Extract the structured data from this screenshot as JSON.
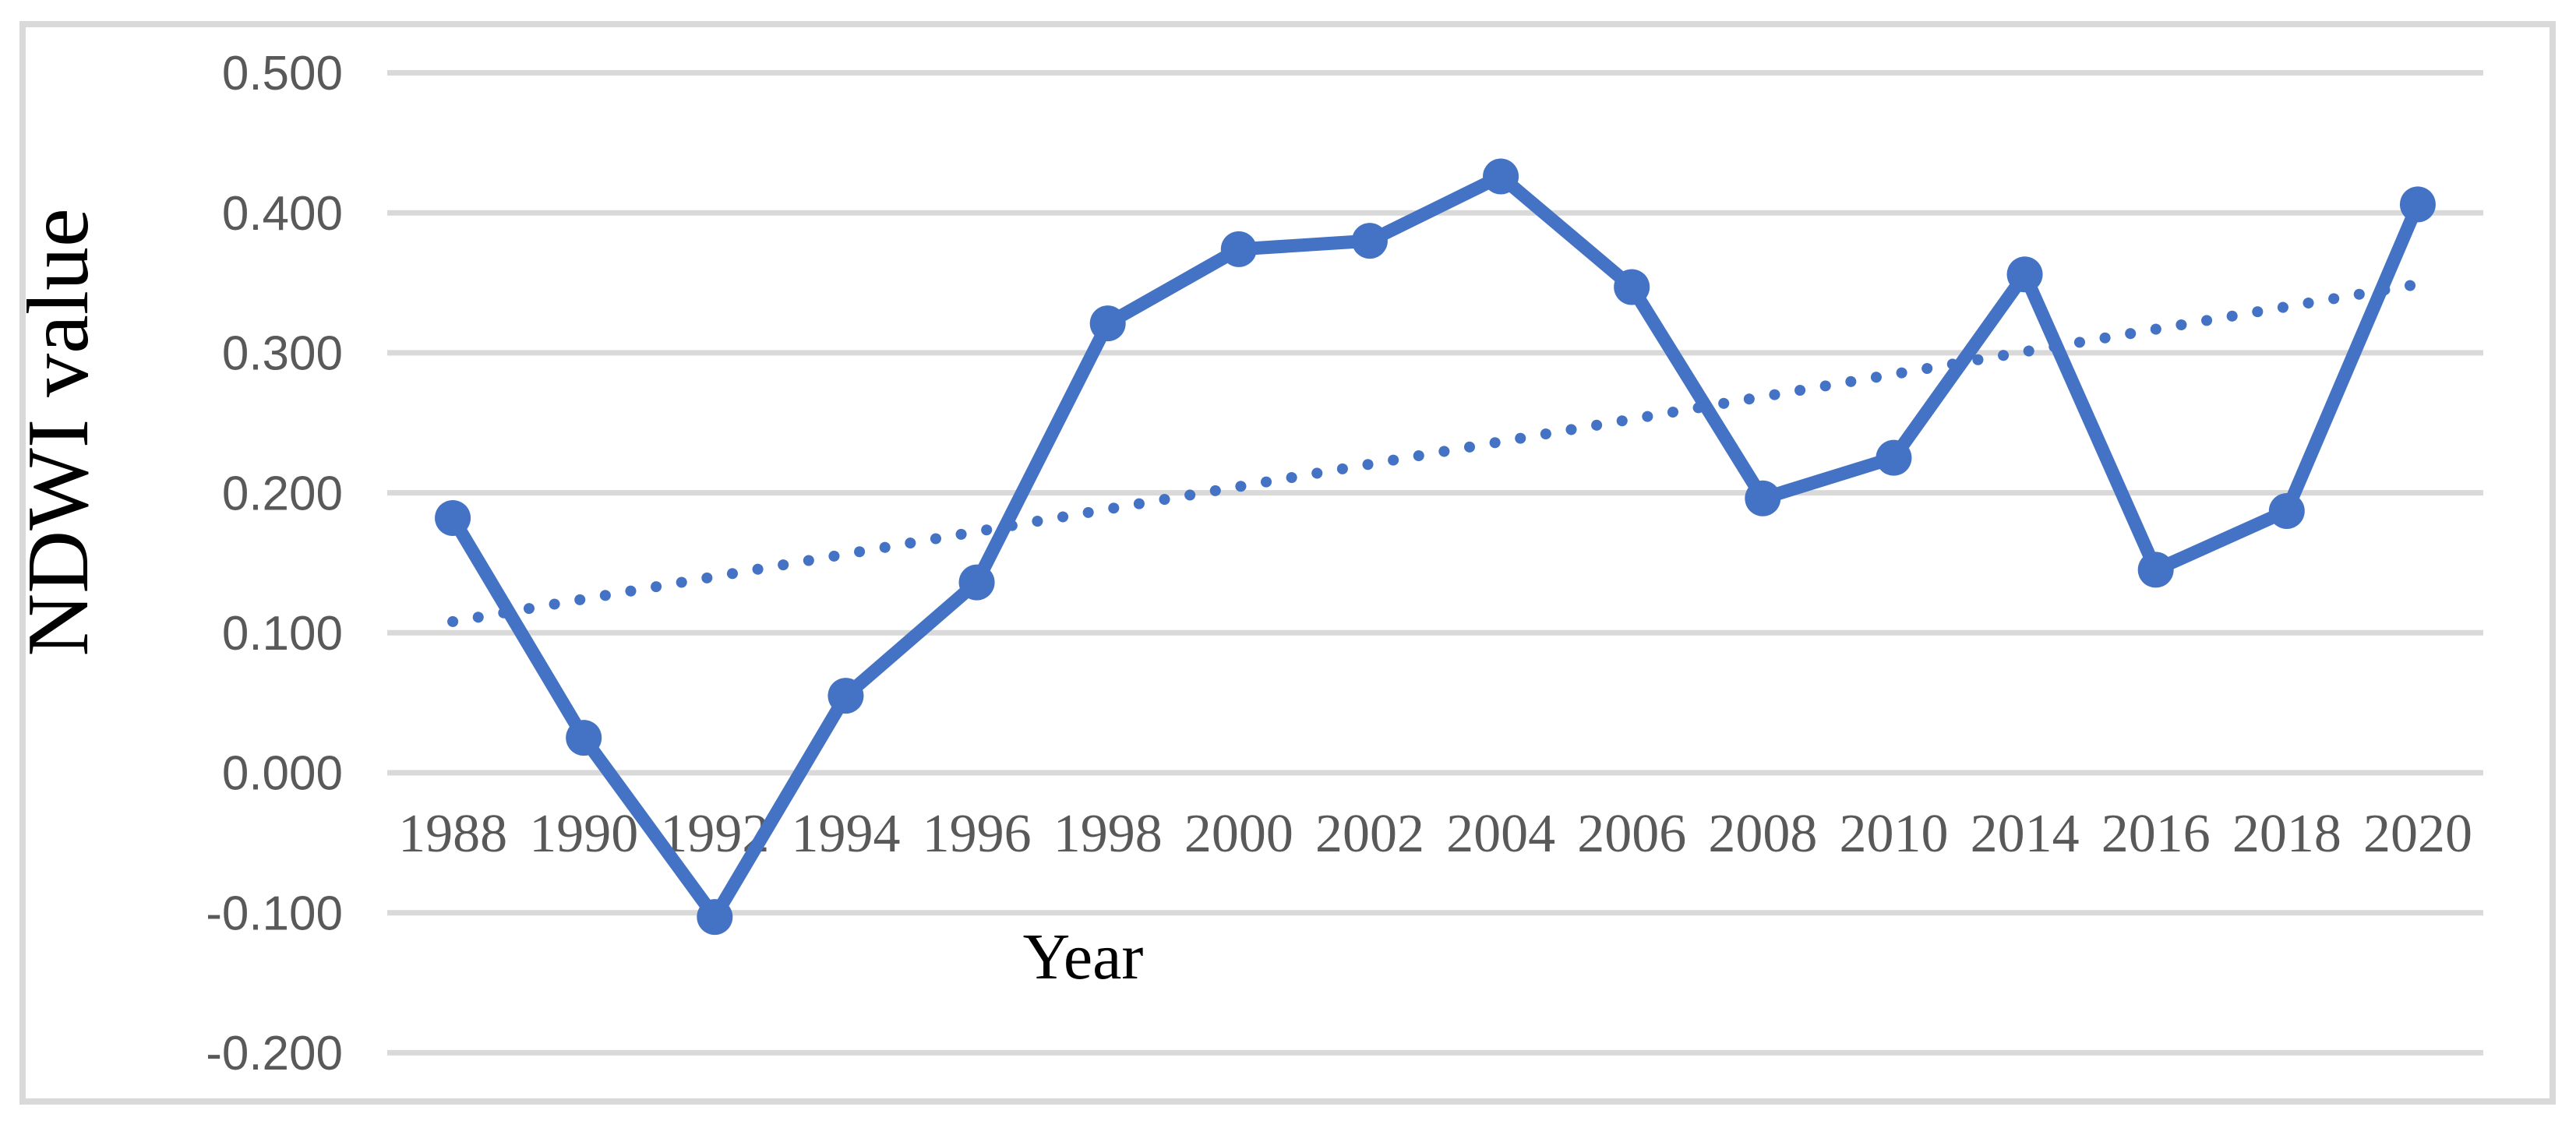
{
  "figure": {
    "background": "#ffffff",
    "border_color": "#d9d9d9"
  },
  "chart_data": {
    "type": "line",
    "title": "",
    "xlabel": "Year",
    "ylabel": "NDWI value",
    "categories": [
      "1988",
      "1990",
      "1992",
      "1994",
      "1996",
      "1998",
      "2000",
      "2002",
      "2004",
      "2006",
      "2008",
      "2010",
      "2014",
      "2016",
      "2018",
      "2020"
    ],
    "series": [
      {
        "name": "NDWI value",
        "type": "line-with-markers",
        "color": "#4472c4",
        "values": [
          0.182,
          0.025,
          -0.103,
          0.055,
          0.136,
          0.321,
          0.374,
          0.38,
          0.426,
          0.347,
          0.196,
          0.225,
          0.356,
          0.145,
          0.187,
          0.406
        ]
      },
      {
        "name": "Linear trendline",
        "type": "dotted-trendline",
        "color": "#4472c4",
        "start": 0.108,
        "end": 0.349
      }
    ],
    "y_ticks": [
      "0.500",
      "0.400",
      "0.300",
      "0.200",
      "0.100",
      "0.000",
      "-0.100",
      "-0.200"
    ],
    "ylim": [
      -0.2,
      0.5
    ],
    "grid": true,
    "legend_position": "none",
    "gridline_color": "#d9d9d9",
    "tick_label_color": "#595959",
    "axis_title_color": "#000000"
  }
}
